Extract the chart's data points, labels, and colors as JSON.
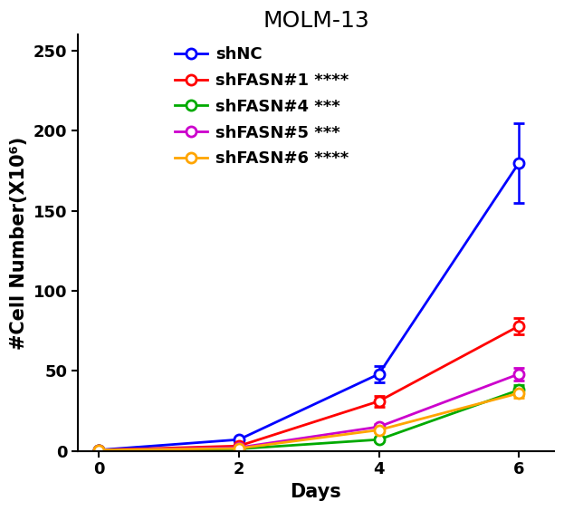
{
  "title": "MOLM-13",
  "xlabel": "Days",
  "ylabel": "#Cell Number(X10⁶)",
  "x": [
    0,
    2,
    4,
    6
  ],
  "series": [
    {
      "label": "shNC",
      "color": "#0000FF",
      "values": [
        0.5,
        7.0,
        48.0,
        180.0
      ],
      "yerr": [
        0.3,
        0.8,
        5.0,
        25.0
      ]
    },
    {
      "label": "shFASN#1",
      "color": "#FF0000",
      "values": [
        0.5,
        3.0,
        31.0,
        78.0
      ],
      "yerr": [
        0.2,
        0.5,
        3.5,
        5.0
      ],
      "stars": "****"
    },
    {
      "label": "shFASN#4",
      "color": "#00AA00",
      "values": [
        0.5,
        1.2,
        7.0,
        38.0
      ],
      "yerr": [
        0.2,
        0.3,
        1.0,
        3.0
      ],
      "stars": "***"
    },
    {
      "label": "shFASN#5",
      "color": "#CC00CC",
      "values": [
        0.5,
        2.0,
        15.0,
        48.0
      ],
      "yerr": [
        0.2,
        0.3,
        2.0,
        4.0
      ],
      "stars": "***"
    },
    {
      "label": "shFASN#6",
      "color": "#FFA500",
      "values": [
        0.5,
        1.5,
        13.0,
        36.0
      ],
      "yerr": [
        0.2,
        0.3,
        1.5,
        3.0
      ],
      "stars": "****"
    }
  ],
  "ylim": [
    0,
    260
  ],
  "yticks": [
    0,
    50,
    100,
    150,
    200,
    250
  ],
  "xticks": [
    0,
    2,
    4,
    6
  ],
  "title_fontsize": 18,
  "label_fontsize": 15,
  "tick_fontsize": 13,
  "legend_fontsize": 13,
  "marker": "o",
  "markersize": 8,
  "linewidth": 2.0,
  "markeredgewidth": 2.0
}
